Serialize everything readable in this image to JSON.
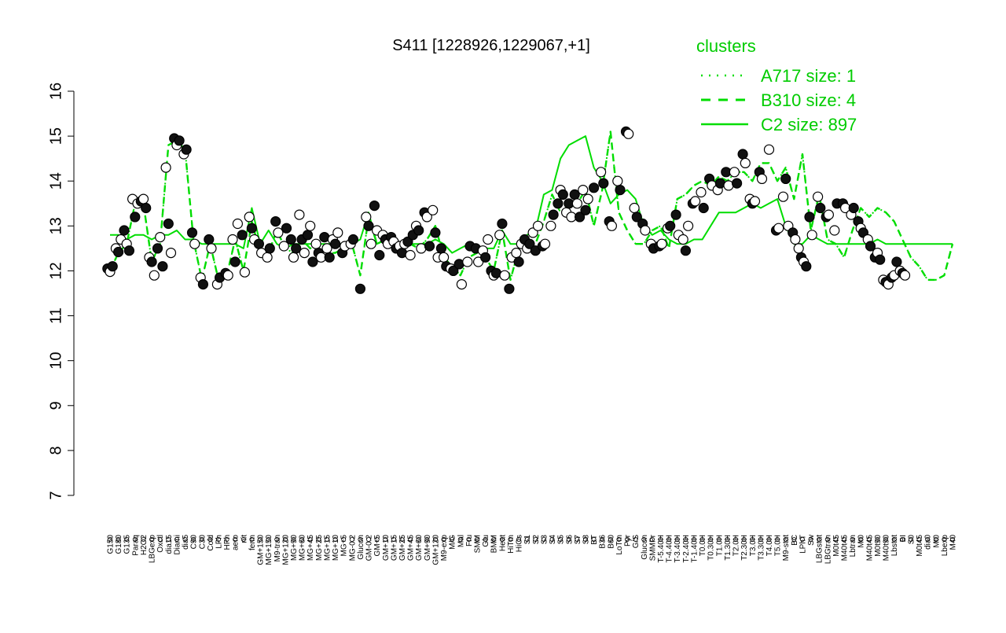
{
  "chart_data": {
    "type": "line",
    "title": "S411 [1228926,1229067,+1]",
    "xlabel": "",
    "ylabel": "",
    "ylim": [
      7,
      16
    ],
    "yticks": [
      7,
      8,
      9,
      10,
      11,
      12,
      13,
      14,
      15,
      16
    ],
    "grid": false,
    "legend": {
      "title": "clusters",
      "position": "top-right",
      "entries": [
        {
          "label": "A717 size: 1",
          "style": "dotted"
        },
        {
          "label": "B310 size: 4",
          "style": "dashed"
        },
        {
          "label": "C2 size: 897",
          "style": "solid"
        }
      ]
    },
    "x_tick_labels": [
      "G150",
      "G180",
      "G135",
      "Paraq",
      "H2O2",
      "LBGexp",
      "Oxctl",
      "dia15",
      "Diami",
      "dia5",
      "C90",
      "C30",
      "Cold",
      "LPh",
      "HPh",
      "aero",
      "nit",
      "ferm",
      "GM+150",
      "MG+150",
      "M9-tran",
      "MG+120",
      "MG+90",
      "MG+60",
      "MG+45",
      "MG+25",
      "MG+15",
      "MG+10",
      "MG+5",
      "MG-0.2",
      "Glucon",
      "GM-0.2",
      "GM+5",
      "GM+10",
      "GM+15",
      "GM+25",
      "GM+45",
      "GM+60",
      "GM+90",
      "GM+120",
      "M9-exp",
      "M/G",
      "Mal",
      "Fru",
      "SMM",
      "Glu",
      "BMM",
      "Heat",
      "HiTm",
      "HiOs",
      "S1",
      "S2",
      "S3",
      "S4",
      "S5",
      "S6",
      "S7",
      "S8",
      "BT",
      "B36",
      "B60",
      "LoTm",
      "Pyr",
      "G/S",
      "Glucon",
      "SMMPr",
      "T-5.40H",
      "T-4.40H",
      "T-3.40H",
      "T-2.40H",
      "T-1.40H",
      "T0.0H",
      "T0.30H",
      "T1.0H",
      "T1.30H",
      "T2.0H",
      "T2.30H",
      "T3.0H",
      "T3.30H",
      "T4.0H",
      "T5.0H",
      "M9-stat",
      "BC",
      "LPhT",
      "Sw",
      "LBGstat",
      "LBGtran",
      "M0t45",
      "M40t45",
      "Lbtran",
      "Mt0",
      "M40t45",
      "M0t90",
      "M40t90",
      "Lbstat",
      "BI",
      "S0",
      "M0t45",
      "dia0",
      "Mt0",
      "Lbexp",
      "M40"
    ],
    "series": [
      {
        "name": "C2 size: 897",
        "style": "solid",
        "values": [
          12.8,
          12.8,
          12.7,
          12.8,
          12.8,
          12.7,
          12.8,
          12.8,
          12.9,
          12.7,
          12.7,
          12.6,
          12.6,
          12.6,
          12.6,
          12.6,
          12.5,
          13.4,
          12.6,
          12.9,
          12.6,
          12.5,
          12.6,
          12.6,
          12.6,
          12.6,
          12.6,
          12.6,
          12.6,
          12.6,
          12.7,
          13.3,
          12.6,
          12.7,
          12.6,
          12.5,
          12.6,
          12.6,
          12.6,
          12.7,
          12.6,
          12.4,
          12.5,
          12.6,
          12.5,
          12.5,
          12.5,
          12.9,
          12.6,
          12.6,
          12.8,
          12.9,
          13.7,
          13.8,
          14.5,
          14.8,
          14.9,
          15.0,
          14.3,
          14.0,
          13.5,
          13.7,
          13.8,
          13.6,
          13.0,
          12.8,
          12.9,
          12.7,
          12.6,
          12.6,
          12.7,
          12.7,
          13.0,
          13.3,
          13.3,
          13.3,
          13.4,
          13.5,
          13.4,
          13.5,
          13.6,
          13.0,
          12.6,
          12.6,
          12.8,
          12.7,
          12.6,
          12.6,
          12.6,
          12.6,
          12.6,
          12.6,
          12.7,
          12.6,
          12.6,
          12.6,
          12.6,
          12.6,
          12.6,
          12.6,
          12.6,
          12.6
        ]
      },
      {
        "name": "B310 size: 4",
        "style": "dashed",
        "values": [
          12.0,
          12.4,
          12.6,
          13.5,
          13.5,
          12.2,
          12.6,
          14.8,
          14.9,
          14.7,
          12.7,
          11.8,
          12.6,
          11.8,
          11.9,
          12.7,
          12.0,
          13.1,
          12.4,
          12.4,
          12.9,
          12.5,
          12.4,
          12.7,
          12.5,
          12.6,
          12.4,
          12.4,
          12.5,
          12.6,
          11.9,
          13.2,
          12.6,
          12.7,
          12.6,
          12.5,
          12.6,
          12.5,
          12.7,
          13.0,
          12.3,
          12.1,
          11.9,
          12.3,
          12.4,
          12.3,
          12.0,
          12.9,
          11.8,
          12.5,
          12.6,
          12.6,
          13.1,
          13.7,
          13.3,
          13.4,
          13.5,
          13.8,
          13.0,
          13.8,
          15.1,
          13.3,
          12.9,
          12.6,
          12.6,
          12.9,
          13.0,
          12.5,
          13.6,
          13.7,
          13.9,
          14.0,
          13.9,
          14.1,
          14.0,
          14.2,
          14.2,
          14.0,
          14.4,
          14.4,
          14.0,
          14.3,
          13.6,
          14.6,
          12.9,
          13.7,
          12.7,
          12.6,
          12.3,
          12.9,
          13.4,
          13.2,
          13.4,
          13.3,
          13.1,
          12.7,
          12.3,
          12.1,
          11.8,
          11.8,
          11.9,
          12.6
        ]
      },
      {
        "name": "A717 size: 1",
        "style": "dotted",
        "values": [
          12.0,
          12.4,
          12.6,
          13.5,
          13.5,
          12.2,
          12.6,
          14.8,
          14.9,
          14.7,
          12.7,
          11.8,
          12.6,
          11.8,
          11.9,
          12.7,
          12.0,
          13.1,
          12.4,
          12.4,
          12.9,
          12.5,
          12.4,
          12.7,
          12.5,
          12.6,
          12.4,
          12.4,
          12.5,
          12.6,
          11.9,
          13.2,
          12.6,
          12.7,
          12.6,
          12.5,
          12.6,
          12.5,
          12.7,
          13.0,
          12.3,
          12.1,
          11.9,
          12.3,
          12.4,
          12.3,
          12.0,
          12.9,
          11.8,
          12.5,
          12.6,
          12.6,
          13.1,
          13.7,
          13.3,
          13.4,
          13.5,
          13.8,
          13.0,
          13.8,
          15.1,
          13.3,
          12.9,
          12.6,
          12.6,
          12.9,
          13.0,
          12.5,
          13.6,
          13.7,
          13.9,
          14.0,
          13.9,
          14.1,
          14.0,
          14.2,
          14.2,
          14.0,
          14.4,
          14.4,
          14.0,
          14.3,
          13.6,
          14.6,
          12.9,
          13.7,
          12.7,
          12.6,
          12.3,
          12.9,
          13.4,
          13.2,
          13.4,
          13.3,
          13.1,
          12.7,
          12.3,
          12.1,
          11.8,
          11.8,
          11.9,
          12.6
        ]
      }
    ],
    "points": [
      {
        "group": 0,
        "values": [
          12.05,
          11.98,
          12.1
        ]
      },
      {
        "group": 1,
        "values": [
          12.5,
          12.42,
          12.7
        ]
      },
      {
        "group": 2,
        "values": [
          12.9,
          12.6,
          12.45
        ]
      },
      {
        "group": 3,
        "values": [
          13.6,
          13.2,
          13.5
        ]
      },
      {
        "group": 4,
        "values": [
          13.55,
          13.6,
          13.4
        ]
      },
      {
        "group": 5,
        "values": [
          12.3,
          12.2,
          11.9
        ]
      },
      {
        "group": 6,
        "values": [
          12.5,
          12.75,
          12.1
        ]
      },
      {
        "group": 7,
        "values": [
          14.3,
          13.05,
          12.4
        ]
      },
      {
        "group": 8,
        "values": [
          14.95,
          14.8,
          14.9
        ]
      },
      {
        "group": 9,
        "values": [
          14.6,
          14.7
        ]
      },
      {
        "group": 10,
        "values": [
          12.85,
          12.6
        ]
      },
      {
        "group": 11,
        "values": [
          11.85,
          11.7
        ]
      },
      {
        "group": 12,
        "values": [
          12.7,
          12.5
        ]
      },
      {
        "group": 13,
        "values": [
          11.7,
          11.85
        ]
      },
      {
        "group": 14,
        "values": [
          11.95,
          11.9
        ]
      },
      {
        "group": 15,
        "values": [
          12.7,
          12.2,
          13.05
        ]
      },
      {
        "group": 16,
        "values": [
          12.8,
          11.97
        ]
      },
      {
        "group": 17,
        "values": [
          13.2,
          12.95,
          12.7
        ]
      },
      {
        "group": 18,
        "values": [
          12.6,
          12.4
        ]
      },
      {
        "group": 19,
        "values": [
          12.3,
          12.5
        ]
      },
      {
        "group": 20,
        "values": [
          13.1,
          12.85
        ]
      },
      {
        "group": 21,
        "values": [
          12.55,
          12.95
        ]
      },
      {
        "group": 22,
        "values": [
          12.7,
          12.3,
          12.5
        ]
      },
      {
        "group": 23,
        "values": [
          13.25,
          12.7,
          12.4
        ]
      },
      {
        "group": 24,
        "values": [
          12.8,
          13.0,
          12.2
        ]
      },
      {
        "group": 25,
        "values": [
          12.6,
          12.4,
          12.3
        ]
      },
      {
        "group": 26,
        "values": [
          12.75,
          12.5,
          12.3
        ]
      },
      {
        "group": 27,
        "values": [
          12.7,
          12.6,
          12.85
        ]
      },
      {
        "group": 28,
        "values": [
          12.4,
          12.55
        ]
      },
      {
        "group": 29,
        "values": [
          12.6,
          12.7
        ]
      },
      {
        "group": 30,
        "values": [
          11.6
        ]
      },
      {
        "group": 31,
        "values": [
          13.2,
          13.0,
          12.6
        ]
      },
      {
        "group": 32,
        "values": [
          13.45,
          12.9,
          12.35
        ]
      },
      {
        "group": 33,
        "values": [
          12.8,
          12.7,
          12.6
        ]
      },
      {
        "group": 34,
        "values": [
          12.75,
          12.65,
          12.5
        ]
      },
      {
        "group": 35,
        "values": [
          12.55,
          12.4,
          12.6
        ]
      },
      {
        "group": 36,
        "values": [
          12.65,
          12.35,
          12.8
        ]
      },
      {
        "group": 37,
        "values": [
          13.0,
          12.9,
          12.5
        ]
      },
      {
        "group": 38,
        "values": [
          13.3,
          13.2,
          12.55
        ]
      },
      {
        "group": 39,
        "values": [
          13.35,
          12.85,
          12.3
        ]
      },
      {
        "group": 40,
        "values": [
          12.5,
          12.3,
          12.1
        ]
      },
      {
        "group": 41,
        "values": [
          12.05,
          12.0
        ]
      },
      {
        "group": 42,
        "values": [
          12.15,
          11.7
        ]
      },
      {
        "group": 43,
        "values": [
          12.2,
          12.55
        ]
      },
      {
        "group": 44,
        "values": [
          12.5,
          12.2
        ]
      },
      {
        "group": 45,
        "values": [
          12.45,
          12.3,
          12.7
        ]
      },
      {
        "group": 46,
        "values": [
          12.0,
          11.9,
          11.95
        ]
      },
      {
        "group": 47,
        "values": [
          12.8,
          13.05,
          11.9
        ]
      },
      {
        "group": 48,
        "values": [
          11.6,
          12.3
        ]
      },
      {
        "group": 49,
        "values": [
          12.4,
          12.2,
          12.6
        ]
      },
      {
        "group": 50,
        "values": [
          12.7,
          12.5,
          12.6
        ]
      },
      {
        "group": 51,
        "values": [
          12.85,
          12.45,
          13.0
        ]
      },
      {
        "group": 52,
        "values": [
          12.55,
          12.6
        ]
      },
      {
        "group": 53,
        "values": [
          13.0,
          13.25
        ]
      },
      {
        "group": 54,
        "values": [
          13.5,
          13.8,
          13.7
        ]
      },
      {
        "group": 55,
        "values": [
          13.3,
          13.5,
          13.2
        ]
      },
      {
        "group": 56,
        "values": [
          13.7,
          13.5,
          13.2
        ]
      },
      {
        "group": 57,
        "values": [
          13.8,
          13.35,
          13.6
        ]
      },
      {
        "group": 58,
        "values": [
          13.85
        ]
      },
      {
        "group": 59,
        "values": [
          14.2,
          13.95
        ]
      },
      {
        "group": 60,
        "values": [
          13.1,
          13.0
        ]
      },
      {
        "group": 61,
        "values": [
          14.0,
          13.8
        ]
      },
      {
        "group": 62,
        "values": [
          15.1,
          15.05
        ]
      },
      {
        "group": 63,
        "values": [
          13.4,
          13.2
        ]
      },
      {
        "group": 64,
        "values": [
          13.05,
          12.9
        ]
      },
      {
        "group": 65,
        "values": [
          12.6,
          12.5
        ]
      },
      {
        "group": 66,
        "values": [
          12.55,
          12.6
        ]
      },
      {
        "group": 67,
        "values": [
          12.95,
          13.0
        ]
      },
      {
        "group": 68,
        "values": [
          13.25,
          12.8
        ]
      },
      {
        "group": 69,
        "values": [
          12.7,
          12.45,
          13.0
        ]
      },
      {
        "group": 70,
        "values": [
          13.5,
          13.55
        ]
      },
      {
        "group": 71,
        "values": [
          13.75,
          13.4
        ]
      },
      {
        "group": 72,
        "values": [
          14.05,
          13.9
        ]
      },
      {
        "group": 73,
        "values": [
          13.8,
          13.95
        ]
      },
      {
        "group": 74,
        "values": [
          14.2,
          13.9
        ]
      },
      {
        "group": 75,
        "values": [
          14.2,
          13.95
        ]
      },
      {
        "group": 76,
        "values": [
          14.6,
          14.4
        ]
      },
      {
        "group": 77,
        "values": [
          13.6,
          13.5,
          13.55
        ]
      },
      {
        "group": 78,
        "values": [
          14.2,
          14.05
        ]
      },
      {
        "group": 79,
        "values": [
          14.7
        ]
      },
      {
        "group": 80,
        "values": [
          12.9,
          12.95
        ]
      },
      {
        "group": 81,
        "values": [
          13.65,
          14.05,
          13.0
        ]
      },
      {
        "group": 82,
        "values": [
          12.85,
          12.7
        ]
      },
      {
        "group": 83,
        "values": [
          12.5,
          12.3,
          12.2,
          12.1
        ]
      },
      {
        "group": 84,
        "values": [
          13.2,
          12.8
        ]
      },
      {
        "group": 85,
        "values": [
          13.65,
          13.4
        ]
      },
      {
        "group": 86,
        "values": [
          13.2,
          13.25
        ]
      },
      {
        "group": 87,
        "values": [
          12.9,
          13.5
        ]
      },
      {
        "group": 88,
        "values": [
          13.5,
          13.4
        ]
      },
      {
        "group": 89,
        "values": [
          13.25,
          13.4
        ]
      },
      {
        "group": 90,
        "values": [
          13.1,
          12.95,
          12.85
        ]
      },
      {
        "group": 91,
        "values": [
          12.7,
          12.55
        ]
      },
      {
        "group": 92,
        "values": [
          12.3,
          12.4,
          12.25
        ]
      },
      {
        "group": 93,
        "values": [
          11.8,
          11.75,
          11.7
        ]
      },
      {
        "group": 94,
        "values": [
          11.85,
          11.9,
          12.2
        ]
      },
      {
        "group": 95,
        "values": [
          12.0,
          11.95,
          11.9
        ]
      }
    ]
  }
}
